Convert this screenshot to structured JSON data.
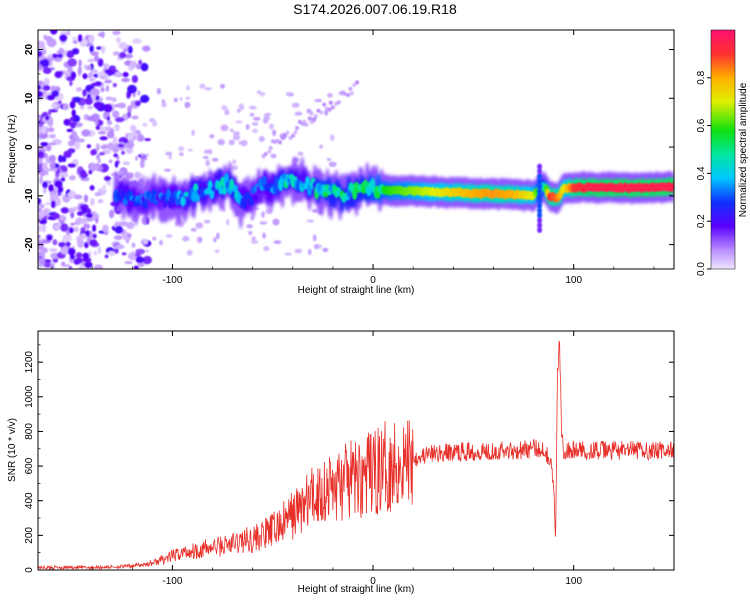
{
  "title": "S174.2026.007.06.19.R18",
  "colors": {
    "heat_low": "#d9c6ff",
    "heat_mid": "#00e0c0",
    "heat_high": "#e8104a",
    "snr_line": "#e8302a"
  },
  "chart_data": [
    {
      "type": "heatmap",
      "xlabel": "Height of straight line (km)",
      "ylabel": "Frequency (Hz)",
      "xlim": [
        -167,
        150
      ],
      "ylim": [
        -25,
        24
      ],
      "x_ticks": [
        "-100",
        "0",
        "100"
      ],
      "y_ticks": [
        "20",
        "10",
        "0",
        "-10",
        "-20"
      ],
      "x_tick_values": [
        -100,
        0,
        100
      ],
      "y_tick_values": [
        20,
        10,
        0,
        -10,
        -20
      ],
      "colorbar": {
        "label": "Normalized spectral amplitude",
        "range": [
          0,
          1
        ],
        "ticks": [
          "0.0",
          "0.2",
          "0.4",
          "0.6",
          "0.8"
        ],
        "tick_values": [
          0,
          0.2,
          0.4,
          0.6,
          0.8
        ]
      },
      "ridge": {
        "x": [
          -125,
          -115,
          -105,
          -95,
          -88,
          -80,
          -72,
          -66,
          -60,
          -55,
          -50,
          -45,
          -40,
          -35,
          -30,
          -25,
          -20,
          -15,
          -10,
          -5,
          0,
          10,
          20,
          30,
          40,
          50,
          60,
          70,
          80,
          85,
          88,
          92,
          95,
          100,
          110,
          120,
          130,
          140,
          148
        ],
        "y": [
          -10,
          -11,
          -10.5,
          -11,
          -9,
          -8.5,
          -7.5,
          -11,
          -10,
          -8,
          -8.5,
          -7,
          -6.5,
          -7.5,
          -8.5,
          -9,
          -9.5,
          -10,
          -9,
          -8.5,
          -8.5,
          -9,
          -9,
          -9.2,
          -9.3,
          -9.5,
          -9.6,
          -9.7,
          -10,
          -8,
          -10,
          -10.5,
          -8.5,
          -8.3,
          -8.3,
          -8.3,
          -8.4,
          -8.3,
          -8.2
        ],
        "amplitude": [
          0.35,
          0.3,
          0.3,
          0.35,
          0.4,
          0.35,
          0.45,
          0.35,
          0.3,
          0.3,
          0.35,
          0.45,
          0.4,
          0.35,
          0.4,
          0.55,
          0.45,
          0.5,
          0.45,
          0.5,
          0.55,
          0.6,
          0.65,
          0.7,
          0.75,
          0.8,
          0.82,
          0.8,
          0.7,
          0.4,
          0.9,
          0.85,
          0.7,
          0.9,
          0.95,
          0.95,
          0.95,
          0.95,
          0.95
        ]
      }
    },
    {
      "type": "line",
      "xlabel": "Height of straight line (km)",
      "ylabel": "SNR (10 * v/v)",
      "xlim": [
        -167,
        150
      ],
      "ylim": [
        0,
        1380
      ],
      "x_ticks": [
        "-100",
        "0",
        "100"
      ],
      "y_ticks": [
        "0",
        "200",
        "400",
        "600",
        "800",
        "1000",
        "1200"
      ],
      "x_tick_values": [
        -100,
        0,
        100
      ],
      "y_tick_values": [
        0,
        200,
        400,
        600,
        800,
        1000,
        1200
      ],
      "series": [
        {
          "x": [
            -167,
            -150,
            -140,
            -130,
            -125,
            -120,
            -115,
            -110,
            -105,
            -100,
            -95,
            -90,
            -85,
            -80,
            -75,
            -70,
            -65,
            -60,
            -55,
            -50,
            -45,
            -40,
            -35,
            -30,
            -25,
            -20,
            -15,
            -10,
            -5,
            0,
            5,
            10,
            15,
            20,
            25,
            30,
            40,
            50,
            60,
            70,
            80,
            85,
            88,
            90,
            91,
            92,
            93,
            94,
            95,
            97,
            100,
            110,
            120,
            130,
            140,
            150
          ],
          "y": [
            15,
            15,
            15,
            18,
            20,
            25,
            30,
            40,
            60,
            80,
            100,
            110,
            120,
            130,
            140,
            150,
            170,
            180,
            200,
            230,
            270,
            320,
            370,
            420,
            460,
            480,
            500,
            520,
            540,
            560,
            590,
            610,
            630,
            650,
            660,
            670,
            680,
            685,
            690,
            690,
            700,
            700,
            650,
            500,
            150,
            1180,
            1300,
            800,
            700,
            690,
            690,
            690,
            690,
            690,
            690,
            690
          ]
        }
      ]
    }
  ]
}
